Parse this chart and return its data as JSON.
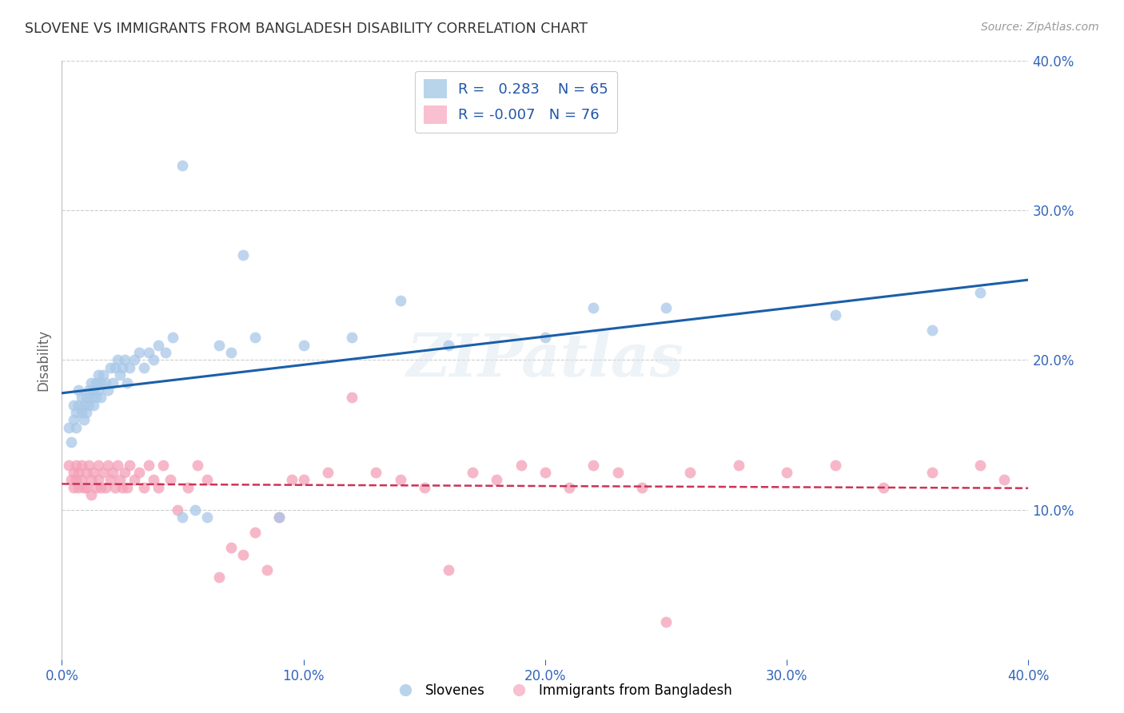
{
  "title": "SLOVENE VS IMMIGRANTS FROM BANGLADESH DISABILITY CORRELATION CHART",
  "source": "Source: ZipAtlas.com",
  "ylabel": "Disability",
  "xlim": [
    0.0,
    0.4
  ],
  "ylim": [
    0.0,
    0.4
  ],
  "slovene_color": "#a8c8e8",
  "immigrant_color": "#f4a0b8",
  "slovene_R": 0.283,
  "slovene_N": 65,
  "immigrant_R": -0.007,
  "immigrant_N": 76,
  "line_blue": "#1a5fa8",
  "line_red": "#cc3355",
  "background": "#ffffff",
  "grid_color": "#cccccc",
  "slovene_x": [
    0.003,
    0.004,
    0.005,
    0.005,
    0.006,
    0.006,
    0.007,
    0.007,
    0.008,
    0.008,
    0.009,
    0.009,
    0.01,
    0.01,
    0.011,
    0.011,
    0.012,
    0.012,
    0.013,
    0.013,
    0.014,
    0.014,
    0.015,
    0.015,
    0.016,
    0.016,
    0.017,
    0.018,
    0.019,
    0.02,
    0.021,
    0.022,
    0.023,
    0.024,
    0.025,
    0.026,
    0.027,
    0.028,
    0.03,
    0.032,
    0.034,
    0.036,
    0.038,
    0.04,
    0.043,
    0.046,
    0.05,
    0.055,
    0.06,
    0.065,
    0.07,
    0.08,
    0.09,
    0.1,
    0.12,
    0.14,
    0.16,
    0.2,
    0.22,
    0.25,
    0.05,
    0.075,
    0.32,
    0.36,
    0.38
  ],
  "slovene_y": [
    0.155,
    0.145,
    0.16,
    0.17,
    0.165,
    0.155,
    0.18,
    0.17,
    0.175,
    0.165,
    0.17,
    0.16,
    0.175,
    0.165,
    0.18,
    0.17,
    0.185,
    0.175,
    0.18,
    0.17,
    0.185,
    0.175,
    0.19,
    0.18,
    0.185,
    0.175,
    0.19,
    0.185,
    0.18,
    0.195,
    0.185,
    0.195,
    0.2,
    0.19,
    0.195,
    0.2,
    0.185,
    0.195,
    0.2,
    0.205,
    0.195,
    0.205,
    0.2,
    0.21,
    0.205,
    0.215,
    0.095,
    0.1,
    0.095,
    0.21,
    0.205,
    0.215,
    0.095,
    0.21,
    0.215,
    0.24,
    0.21,
    0.215,
    0.235,
    0.235,
    0.33,
    0.27,
    0.23,
    0.22,
    0.245
  ],
  "immigrant_x": [
    0.003,
    0.004,
    0.005,
    0.005,
    0.006,
    0.006,
    0.007,
    0.007,
    0.008,
    0.008,
    0.009,
    0.01,
    0.01,
    0.011,
    0.012,
    0.012,
    0.013,
    0.014,
    0.015,
    0.015,
    0.016,
    0.017,
    0.018,
    0.019,
    0.02,
    0.021,
    0.022,
    0.023,
    0.024,
    0.025,
    0.026,
    0.027,
    0.028,
    0.03,
    0.032,
    0.034,
    0.036,
    0.038,
    0.04,
    0.042,
    0.045,
    0.048,
    0.052,
    0.056,
    0.06,
    0.07,
    0.08,
    0.09,
    0.1,
    0.11,
    0.12,
    0.13,
    0.14,
    0.15,
    0.16,
    0.18,
    0.2,
    0.22,
    0.24,
    0.26,
    0.28,
    0.3,
    0.32,
    0.34,
    0.36,
    0.38,
    0.39,
    0.065,
    0.075,
    0.085,
    0.095,
    0.17,
    0.19,
    0.21,
    0.23,
    0.25
  ],
  "immigrant_y": [
    0.13,
    0.12,
    0.125,
    0.115,
    0.13,
    0.12,
    0.125,
    0.115,
    0.13,
    0.12,
    0.115,
    0.125,
    0.115,
    0.13,
    0.12,
    0.11,
    0.125,
    0.115,
    0.13,
    0.12,
    0.115,
    0.125,
    0.115,
    0.13,
    0.12,
    0.125,
    0.115,
    0.13,
    0.12,
    0.115,
    0.125,
    0.115,
    0.13,
    0.12,
    0.125,
    0.115,
    0.13,
    0.12,
    0.115,
    0.13,
    0.12,
    0.1,
    0.115,
    0.13,
    0.12,
    0.075,
    0.085,
    0.095,
    0.12,
    0.125,
    0.175,
    0.125,
    0.12,
    0.115,
    0.06,
    0.12,
    0.125,
    0.13,
    0.115,
    0.125,
    0.13,
    0.125,
    0.13,
    0.115,
    0.125,
    0.13,
    0.12,
    0.055,
    0.07,
    0.06,
    0.12,
    0.125,
    0.13,
    0.115,
    0.125,
    0.025
  ]
}
